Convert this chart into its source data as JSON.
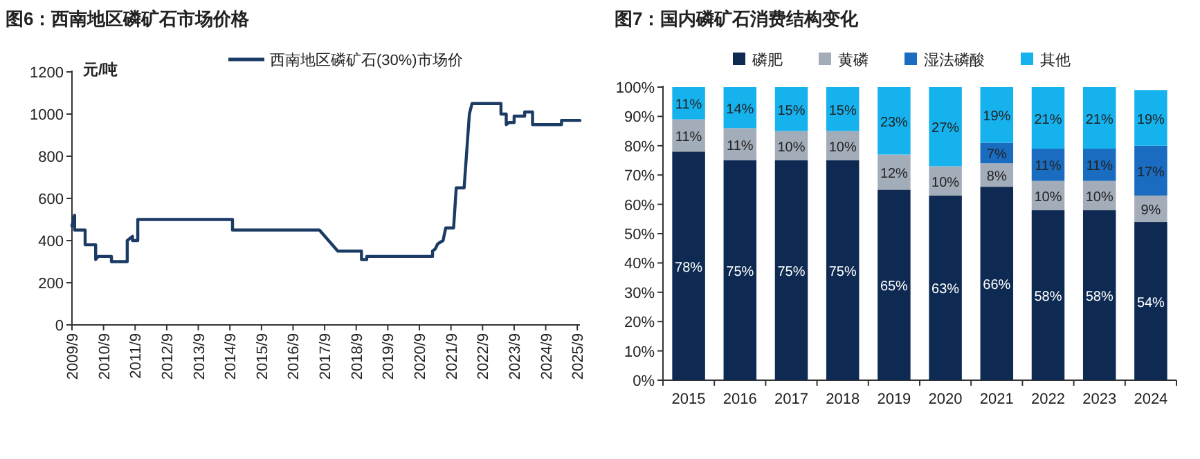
{
  "chart_data": [
    {
      "type": "line",
      "title": "图6：西南地区磷矿石市场价格",
      "ylabel": "元/吨",
      "legend": "top",
      "grid": false,
      "marker": "none",
      "line_style": "solid",
      "xlim": [
        "2009-09",
        "2025-10"
      ],
      "xticks": [
        {
          "value": "2009-09",
          "label": "2009/9"
        },
        {
          "value": "2010-09",
          "label": "2010/9"
        },
        {
          "value": "2011-09",
          "label": "2011/9"
        },
        {
          "value": "2012-09",
          "label": "2012/9"
        },
        {
          "value": "2013-09",
          "label": "2013/9"
        },
        {
          "value": "2014-09",
          "label": "2014/9"
        },
        {
          "value": "2015-09",
          "label": "2015/9"
        },
        {
          "value": "2016-09",
          "label": "2016/9"
        },
        {
          "value": "2017-09",
          "label": "2017/9"
        },
        {
          "value": "2018-09",
          "label": "2018/9"
        },
        {
          "value": "2019-09",
          "label": "2019/9"
        },
        {
          "value": "2020-09",
          "label": "2020/9"
        },
        {
          "value": "2021-09",
          "label": "2021/9"
        },
        {
          "value": "2022-09",
          "label": "2022/9"
        },
        {
          "value": "2023-09",
          "label": "2023/9"
        },
        {
          "value": "2024-09",
          "label": "2024/9"
        },
        {
          "value": "2025-09",
          "label": "2025/9"
        }
      ],
      "ylim": [
        0,
        1200
      ],
      "yticks": [
        0,
        200,
        400,
        600,
        800,
        1000,
        1200
      ],
      "series": [
        {
          "name": "西南地区磷矿石(30%)市场价",
          "color": "#1b3a64",
          "x": [
            "2009-09",
            "2009-10",
            "2009-10",
            "2010-02",
            "2010-02",
            "2010-06",
            "2010-06",
            "2010-07",
            "2010-12",
            "2010-12",
            "2011-06",
            "2011-06",
            "2011-08",
            "2011-08",
            "2011-10",
            "2011-10",
            "2014-10",
            "2014-10",
            "2017-07",
            "2018-02",
            "2018-11",
            "2018-11",
            "2019-01",
            "2019-01",
            "2021-02",
            "2021-02",
            "2021-03",
            "2021-04",
            "2021-06",
            "2021-07",
            "2021-10",
            "2021-11",
            "2022-02",
            "2022-04",
            "2022-05",
            "2023-04",
            "2023-04",
            "2023-06",
            "2023-06",
            "2023-07",
            "2023-09",
            "2023-09",
            "2024-01",
            "2024-01",
            "2024-04",
            "2024-04",
            "2025-03",
            "2025-03",
            "2025-10"
          ],
          "values": [
            470,
            520,
            450,
            450,
            380,
            380,
            310,
            325,
            325,
            300,
            300,
            400,
            420,
            400,
            400,
            500,
            500,
            450,
            450,
            350,
            350,
            310,
            310,
            325,
            325,
            350,
            360,
            385,
            400,
            460,
            460,
            650,
            650,
            1000,
            1050,
            1050,
            1000,
            1000,
            950,
            960,
            960,
            990,
            990,
            1010,
            1010,
            950,
            950,
            970,
            970
          ]
        }
      ]
    },
    {
      "type": "bar",
      "stacked": true,
      "title": "图7：国内磷矿石消费结构变化",
      "legend": "top",
      "grid": false,
      "categories": [
        "2015",
        "2016",
        "2017",
        "2018",
        "2019",
        "2020",
        "2021",
        "2022",
        "2023",
        "2024"
      ],
      "ylim": [
        0,
        100
      ],
      "yticks": [
        {
          "value": 0,
          "label": "0%"
        },
        {
          "value": 10,
          "label": "10%"
        },
        {
          "value": 20,
          "label": "20%"
        },
        {
          "value": 30,
          "label": "30%"
        },
        {
          "value": 40,
          "label": "40%"
        },
        {
          "value": 50,
          "label": "50%"
        },
        {
          "value": 60,
          "label": "60%"
        },
        {
          "value": 70,
          "label": "70%"
        },
        {
          "value": 80,
          "label": "80%"
        },
        {
          "value": 90,
          "label": "90%"
        },
        {
          "value": 100,
          "label": "100%"
        }
      ],
      "series": [
        {
          "name": "磷肥",
          "color": "#0e2a52",
          "values": [
            78,
            75,
            75,
            75,
            65,
            63,
            66,
            58,
            58,
            54
          ],
          "value_labels": [
            "78%",
            "75%",
            "75%",
            "75%",
            "65%",
            "63%",
            "66%",
            "58%",
            "58%",
            "54%"
          ]
        },
        {
          "name": "黄磷",
          "color": "#a3acb9",
          "values": [
            11,
            11,
            10,
            10,
            12,
            10,
            8,
            10,
            10,
            9
          ],
          "value_labels": [
            "11%",
            "11%",
            "10%",
            "10%",
            "12%",
            "10%",
            "8%",
            "10%",
            "10%",
            "9%"
          ]
        },
        {
          "name": "湿法磷酸",
          "color": "#1a6cc0",
          "values": [
            null,
            null,
            null,
            null,
            null,
            null,
            7,
            11,
            11,
            17
          ],
          "value_labels": [
            null,
            null,
            null,
            null,
            null,
            null,
            "7%",
            "11%",
            "11%",
            "17%"
          ]
        },
        {
          "name": "其他",
          "color": "#16b2ee",
          "values": [
            11,
            14,
            15,
            15,
            23,
            27,
            19,
            21,
            21,
            19
          ],
          "value_labels": [
            "11%",
            "14%",
            "15%",
            "15%",
            "23%",
            "27%",
            "19%",
            "21%",
            "21%",
            "19%"
          ]
        }
      ]
    }
  ]
}
